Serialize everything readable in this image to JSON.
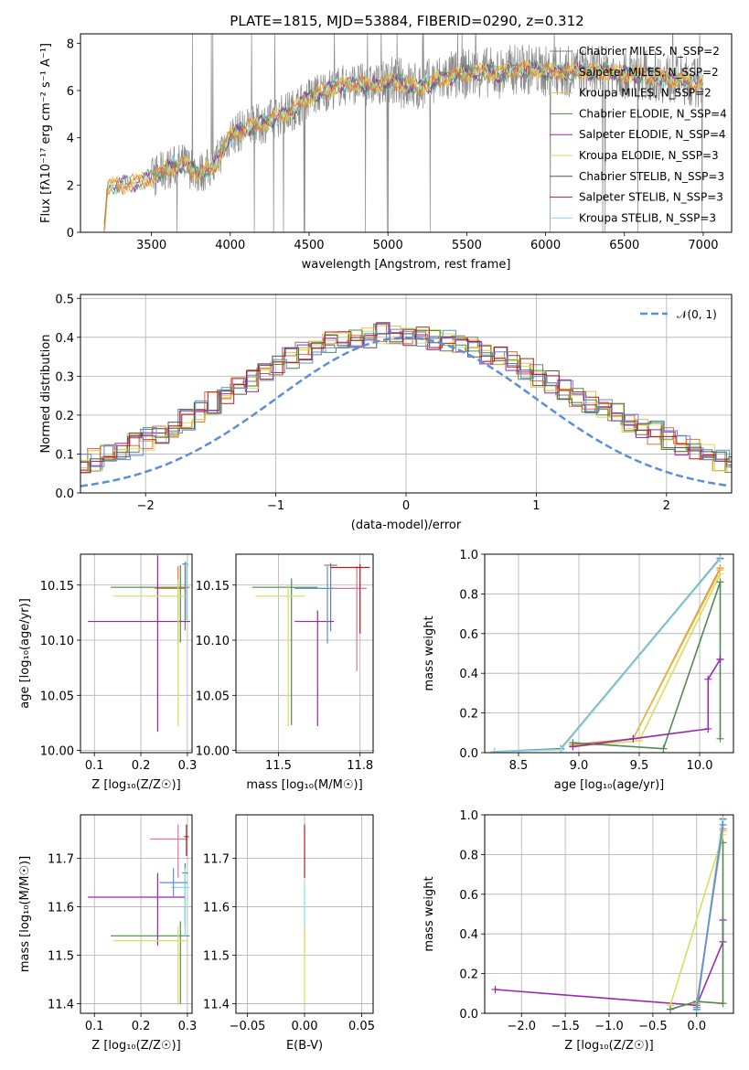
{
  "title": "PLATE=1815, MJD=53884, FIBERID=0290, z=0.312",
  "colors": {
    "Chabrier MILES": "#7a7a7a",
    "Salpeter MILES": "#e8702a",
    "Kroupa MILES": "#e2c044",
    "Chabrier ELODIE": "#4f8a4f",
    "Salpeter ELODIE": "#9b27b0",
    "Kroupa ELODIE": "#d4e157",
    "Chabrier STELIB": "#555555",
    "Salpeter STELIB": "#b71c1c",
    "Kroupa STELIB": "#80deea",
    "extra": "#5b8fd9",
    "pink": "#e57399",
    "gauss": "#5b8fd9"
  },
  "chart_data": [
    {
      "type": "line",
      "xlabel": "wavelength [Angstrom, rest frame]",
      "ylabel": "Flux [fλ10⁻¹⁷ erg cm⁻² s⁻¹ A⁻¹]",
      "xlim": [
        3050,
        7180
      ],
      "ylim": [
        0,
        8.4
      ],
      "xticks": [
        3500,
        4000,
        4500,
        5000,
        5500,
        6000,
        6500,
        7000
      ],
      "yticks": [
        0,
        2,
        4,
        6,
        8
      ],
      "legend_position": "top-right",
      "legend": [
        "Chabrier MILES, N_SSP=2",
        "Salpeter MILES, N_SSP=2",
        "Kroupa MILES, N_SSP=2",
        "Chabrier ELODIE, N_SSP=4",
        "Salpeter ELODIE, N_SSP=4",
        "Kroupa ELODIE, N_SSP=3",
        "Chabrier STELIB, N_SSP=3",
        "Salpeter STELIB, N_SSP=3",
        "Kroupa STELIB, N_SSP=3"
      ],
      "spectrum_approx": {
        "wavelength": [
          3200,
          3220,
          3240,
          3300,
          3400,
          3500,
          3600,
          3700,
          3800,
          3900,
          3950,
          4000,
          4100,
          4200,
          4300,
          4400,
          4500,
          4600,
          4700,
          4800,
          4900,
          5000,
          5100,
          5200,
          5300,
          5400,
          5500,
          5600,
          5700,
          5800,
          5900,
          6000,
          6100,
          6200,
          6300,
          6400,
          6500,
          6600,
          6700,
          6800,
          6900,
          7000
        ],
        "flux": [
          0,
          1.8,
          2.0,
          2.0,
          2.1,
          2.3,
          2.7,
          2.9,
          2.5,
          2.8,
          3.5,
          4.1,
          4.4,
          4.6,
          4.9,
          5.2,
          5.7,
          6.0,
          6.2,
          6.3,
          6.2,
          6.4,
          6.3,
          6.1,
          6.4,
          6.6,
          6.7,
          6.8,
          6.7,
          6.9,
          6.9,
          6.8,
          6.8,
          6.8,
          6.8,
          6.8,
          6.7,
          6.7,
          6.6,
          6.5,
          6.4,
          6.3
        ]
      }
    },
    {
      "type": "line",
      "xlabel": "(data-model)/error",
      "ylabel": "Normed distribution",
      "xlim": [
        -2.5,
        2.5
      ],
      "ylim": [
        0,
        0.51
      ],
      "xticks": [
        -2,
        -1,
        0,
        1,
        2
      ],
      "yticks": [
        0.0,
        0.1,
        0.2,
        0.3,
        0.4,
        0.5
      ],
      "legend": [
        "𝒩(0, 1)"
      ],
      "legend_position": "top-right",
      "hist_bin_width": 0.1,
      "hist_approx": [
        0.03,
        0.035,
        0.04,
        0.045,
        0.05,
        0.055,
        0.065,
        0.075,
        0.085,
        0.1,
        0.11,
        0.125,
        0.14,
        0.155,
        0.17,
        0.19,
        0.21,
        0.23,
        0.25,
        0.27,
        0.29,
        0.31,
        0.33,
        0.345,
        0.36,
        0.375,
        0.385,
        0.39,
        0.395,
        0.4,
        0.41,
        0.41,
        0.405,
        0.4,
        0.395,
        0.39,
        0.38,
        0.37,
        0.36,
        0.35,
        0.335,
        0.32,
        0.3,
        0.285,
        0.27,
        0.25,
        0.235,
        0.22,
        0.2,
        0.185,
        0.17,
        0.155,
        0.14,
        0.125,
        0.11,
        0.1,
        0.085,
        0.075,
        0.065,
        0.055,
        0.05,
        0.045,
        0.04,
        0.035,
        0.03
      ]
    },
    {
      "type": "scatter",
      "xlabel": "Z [log₁₀(Z/Z☉)]",
      "ylabel": "age  [log₁₀(age/yr)]",
      "xlim": [
        0.07,
        0.31
      ],
      "ylim": [
        9.998,
        10.178
      ],
      "xticks": [
        0.1,
        0.2,
        0.3
      ],
      "yticks": [
        10.0,
        10.05,
        10.1,
        10.15
      ],
      "points": [
        {
          "x": 0.295,
          "y": 10.169,
          "xerr": [
            0.006,
            0.006
          ],
          "yerr": [
            0.06,
            0.002
          ],
          "c": "Chabrier MILES"
        },
        {
          "x": 0.28,
          "y": 10.147,
          "xerr": [
            0.05,
            0.02
          ],
          "yerr": [
            0.05,
            0.02
          ],
          "c": "Salpeter MILES"
        },
        {
          "x": 0.285,
          "y": 10.148,
          "xerr": [
            0.15,
            0.02
          ],
          "yerr": [
            0.05,
            0.02
          ],
          "c": "Chabrier ELODIE"
        },
        {
          "x": 0.236,
          "y": 10.117,
          "xerr": [
            0.15,
            0.07
          ],
          "yerr": [
            0.1,
            0.06
          ],
          "c": "Salpeter ELODIE"
        },
        {
          "x": 0.28,
          "y": 10.14,
          "xerr": [
            0.14,
            0.02
          ],
          "yerr": [
            0.118,
            0.015
          ],
          "c": "Kroupa ELODIE"
        },
        {
          "x": 0.298,
          "y": 10.168,
          "xerr": [
            0.005,
            0.005
          ],
          "yerr": [
            0.05,
            0.003
          ],
          "c": "Kroupa STELIB"
        }
      ]
    },
    {
      "type": "scatter",
      "xlabel": "mass [log₁₀(M/M☉)]",
      "ylabel": "",
      "xlim": [
        11.37,
        11.79
      ],
      "ylim": [
        9.998,
        10.178
      ],
      "xticks": [
        11.5,
        11.75
      ],
      "yticks": [
        10.0,
        10.05,
        10.1,
        10.15
      ],
      "points": [
        {
          "x": 11.66,
          "y": 10.168,
          "xerr": [
            0.02,
            0.02
          ],
          "yerr": [
            0.06,
            0.002
          ],
          "c": "Chabrier MILES"
        },
        {
          "x": 11.74,
          "y": 10.147,
          "xerr": [
            0.08,
            0.03
          ],
          "yerr": [
            0.075,
            0.02
          ],
          "c": "pink"
        },
        {
          "x": 11.54,
          "y": 10.148,
          "xerr": [
            0.12,
            0.08
          ],
          "yerr": [
            0.125,
            0.008
          ],
          "c": "Chabrier ELODIE"
        },
        {
          "x": 11.62,
          "y": 10.117,
          "xerr": [
            0.07,
            0.05
          ],
          "yerr": [
            0.095,
            0.01
          ],
          "c": "Salpeter ELODIE"
        },
        {
          "x": 11.53,
          "y": 10.14,
          "xerr": [
            0.1,
            0.05
          ],
          "yerr": [
            0.118,
            0.01
          ],
          "c": "Kroupa ELODIE"
        },
        {
          "x": 11.75,
          "y": 10.166,
          "xerr": [
            0.09,
            0.03
          ],
          "yerr": [
            0.06,
            0.003
          ],
          "c": "Salpeter STELIB"
        },
        {
          "x": 11.65,
          "y": 10.147,
          "xerr": [
            0.1,
            0.02
          ],
          "yerr": [
            0.05,
            0.02
          ],
          "c": "extra"
        }
      ]
    },
    {
      "type": "line",
      "xlabel": "age  [log₁₀(age/yr)]",
      "ylabel": "mass weight",
      "xlim": [
        8.22,
        10.28
      ],
      "ylim": [
        0,
        1.0
      ],
      "xticks": [
        8.5,
        9.0,
        9.5,
        10.0
      ],
      "yticks": [
        0.0,
        0.2,
        0.4,
        0.6,
        0.8,
        1.0
      ],
      "series": [
        {
          "c": "Chabrier MILES",
          "x": [
            8.3,
            8.85,
            10.17
          ],
          "y": [
            0.005,
            0.02,
            0.98
          ]
        },
        {
          "c": "Kroupa STELIB",
          "x": [
            8.3,
            8.85,
            10.17
          ],
          "y": [
            0.004,
            0.015,
            0.975
          ]
        },
        {
          "c": "Salpeter MILES",
          "x": [
            8.95,
            9.45,
            10.17
          ],
          "y": [
            0.04,
            0.07,
            0.93
          ]
        },
        {
          "c": "Kroupa MILES",
          "x": [
            8.95,
            9.45,
            10.17
          ],
          "y": [
            0.035,
            0.07,
            0.92
          ]
        },
        {
          "c": "Kroupa ELODIE",
          "x": [
            8.95,
            9.5,
            10.17
          ],
          "y": [
            0.03,
            0.06,
            0.9
          ]
        },
        {
          "c": "Chabrier ELODIE",
          "x": [
            8.95,
            9.7,
            10.17,
            10.17
          ],
          "y": [
            0.05,
            0.02,
            0.86,
            0.07
          ]
        },
        {
          "c": "Salpeter ELODIE",
          "x": [
            8.95,
            9.45,
            10.07,
            10.07,
            10.17,
            10.17
          ],
          "y": [
            0.03,
            0.07,
            0.12,
            0.37,
            0.47,
            0.47
          ]
        }
      ]
    },
    {
      "type": "scatter",
      "xlabel": "Z [log₁₀(Z/Z☉)]",
      "ylabel": "mass [log₁₀(M/M☉)]",
      "xlim": [
        0.07,
        0.31
      ],
      "ylim": [
        11.38,
        11.79
      ],
      "xticks": [
        0.1,
        0.2,
        0.3
      ],
      "yticks": [
        11.4,
        11.5,
        11.6,
        11.7
      ],
      "points": [
        {
          "x": 0.295,
          "y": 11.67,
          "xerr": [
            0.006,
            0.006
          ],
          "yerr": [
            0.11,
            0.02
          ],
          "c": "Chabrier MILES"
        },
        {
          "x": 0.28,
          "y": 11.74,
          "xerr": [
            0.06,
            0.02
          ],
          "yerr": [
            0.08,
            0.03
          ],
          "c": "pink"
        },
        {
          "x": 0.285,
          "y": 11.54,
          "xerr": [
            0.15,
            0.02
          ],
          "yerr": [
            0.14,
            0.03
          ],
          "c": "Chabrier ELODIE"
        },
        {
          "x": 0.236,
          "y": 11.62,
          "xerr": [
            0.15,
            0.06
          ],
          "yerr": [
            0.1,
            0.05
          ],
          "c": "Salpeter ELODIE"
        },
        {
          "x": 0.28,
          "y": 11.53,
          "xerr": [
            0.14,
            0.02
          ],
          "yerr": [
            0.13,
            0.03
          ],
          "c": "Kroupa ELODIE"
        },
        {
          "x": 0.298,
          "y": 11.745,
          "xerr": [
            0.005,
            0.005
          ],
          "yerr": [
            0.04,
            0.025
          ],
          "c": "Salpeter STELIB"
        },
        {
          "x": 0.295,
          "y": 11.64,
          "xerr": [
            0.03,
            0.01
          ],
          "yerr": [
            0.1,
            0.04
          ],
          "c": "Kroupa STELIB"
        },
        {
          "x": 0.27,
          "y": 11.65,
          "xerr": [
            0.03,
            0.03
          ],
          "yerr": [
            0.03,
            0.03
          ],
          "c": "extra"
        }
      ]
    },
    {
      "type": "scatter",
      "xlabel": "E(B-V)",
      "ylabel": "",
      "xlim": [
        -0.06,
        0.06
      ],
      "ylim": [
        11.38,
        11.79
      ],
      "xticks": [
        -0.05,
        0.0,
        0.05
      ],
      "yticks": [
        11.4,
        11.5,
        11.6,
        11.7
      ],
      "points": [
        {
          "x": 0.0,
          "y": 11.72,
          "xerr": [
            0,
            0
          ],
          "yerr": [
            0.06,
            0.05
          ],
          "c": "Salpeter STELIB"
        },
        {
          "x": 0.0,
          "y": 11.6,
          "xerr": [
            0,
            0
          ],
          "yerr": [
            0.1,
            0.05
          ],
          "c": "Kroupa STELIB"
        },
        {
          "x": 0.0,
          "y": 11.48,
          "xerr": [
            0,
            0
          ],
          "yerr": [
            0.08,
            0.08
          ],
          "c": "Kroupa ELODIE"
        }
      ]
    },
    {
      "type": "line",
      "xlabel": "Z [log₁₀(Z/Z☉)]",
      "ylabel": "mass weight",
      "xlim": [
        -2.42,
        0.42
      ],
      "ylim": [
        0,
        1.0
      ],
      "xticks": [
        -2.0,
        -1.5,
        -1.0,
        -0.5,
        0.0
      ],
      "yticks": [
        0.0,
        0.2,
        0.4,
        0.6,
        0.8,
        1.0
      ],
      "series": [
        {
          "c": "Salpeter ELODIE",
          "x": [
            -2.3,
            0.0,
            0.3,
            0.3
          ],
          "y": [
            0.12,
            0.04,
            0.36,
            0.47
          ]
        },
        {
          "c": "Kroupa ELODIE",
          "x": [
            -0.3,
            0.3
          ],
          "y": [
            0.04,
            0.9
          ]
        },
        {
          "c": "Chabrier ELODIE",
          "x": [
            -0.3,
            0.0,
            0.3,
            0.3
          ],
          "y": [
            0.02,
            0.06,
            0.05,
            0.86
          ]
        },
        {
          "c": "Salpeter MILES",
          "x": [
            0.0,
            0.3
          ],
          "y": [
            0.05,
            0.93
          ]
        },
        {
          "c": "Kroupa MILES",
          "x": [
            0.0,
            0.3
          ],
          "y": [
            0.05,
            0.92
          ]
        },
        {
          "c": "Chabrier MILES",
          "x": [
            0.0,
            0.3
          ],
          "y": [
            0.02,
            0.98
          ]
        },
        {
          "c": "Kroupa STELIB",
          "x": [
            0.0,
            0.3
          ],
          "y": [
            0.015,
            0.975
          ]
        },
        {
          "c": "extra",
          "x": [
            0.0,
            0.3
          ],
          "y": [
            0.03,
            0.95
          ]
        }
      ]
    }
  ]
}
